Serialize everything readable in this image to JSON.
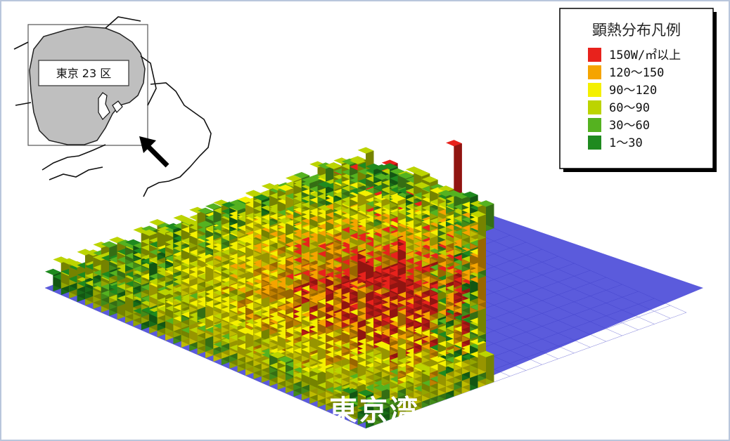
{
  "inset": {
    "region_label": "東京 23 区"
  },
  "bay": {
    "label": "東京湾"
  },
  "legend": {
    "title": "顕熱分布凡例",
    "items": [
      {
        "label": "150W/㎡以上",
        "color": "#e8221c"
      },
      {
        "label": "120～150",
        "color": "#f5a400"
      },
      {
        "label": " 90～120",
        "color": "#f4f000"
      },
      {
        "label": " 60～90",
        "color": "#bcd400"
      },
      {
        "label": " 30～60",
        "color": "#55b220"
      },
      {
        "label": "  1～30",
        "color": "#1f8a1f"
      }
    ]
  },
  "colors": {
    "water": "#5b5bdc",
    "land_inset": "#bfbfbf"
  }
}
